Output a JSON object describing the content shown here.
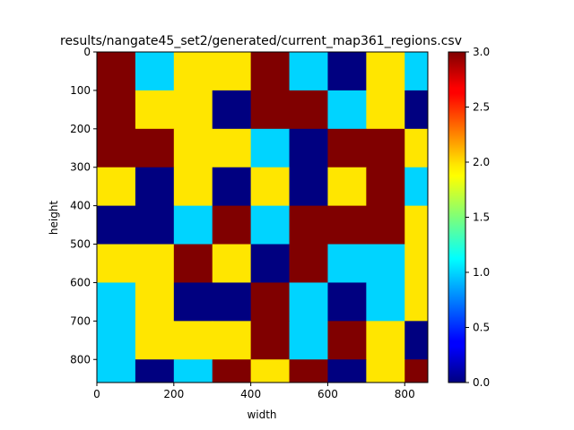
{
  "chart_data": {
    "type": "heatmap",
    "title": "results/nangate45_set2/generated/current_map361_regions.csv",
    "xlabel": "width",
    "ylabel": "height",
    "xlim": [
      0,
      860
    ],
    "ylim": [
      860,
      0
    ],
    "cell_size": 100,
    "x_ticks": [
      0,
      200,
      400,
      600,
      800
    ],
    "y_ticks": [
      0,
      100,
      200,
      300,
      400,
      500,
      600,
      700,
      800
    ],
    "colormap": "jet",
    "colorbar": {
      "vmin": 0.0,
      "vmax": 3.0,
      "ticks": [
        "0.0",
        "0.5",
        "1.0",
        "1.5",
        "2.0",
        "2.5",
        "3.0"
      ]
    },
    "grid": false,
    "values": [
      [
        3,
        1,
        2,
        2,
        3,
        1,
        0,
        2,
        1
      ],
      [
        3,
        2,
        2,
        0,
        3,
        3,
        1,
        2,
        0
      ],
      [
        3,
        3,
        2,
        2,
        1,
        0,
        3,
        3,
        2
      ],
      [
        2,
        0,
        2,
        0,
        2,
        0,
        2,
        3,
        1
      ],
      [
        0,
        0,
        1,
        3,
        1,
        3,
        3,
        3,
        2
      ],
      [
        2,
        2,
        3,
        2,
        0,
        3,
        1,
        1,
        2
      ],
      [
        1,
        2,
        0,
        0,
        3,
        1,
        0,
        1,
        2
      ],
      [
        1,
        2,
        2,
        2,
        3,
        1,
        3,
        2,
        0
      ],
      [
        1,
        0,
        1,
        3,
        2,
        3,
        0,
        2,
        3
      ]
    ]
  }
}
